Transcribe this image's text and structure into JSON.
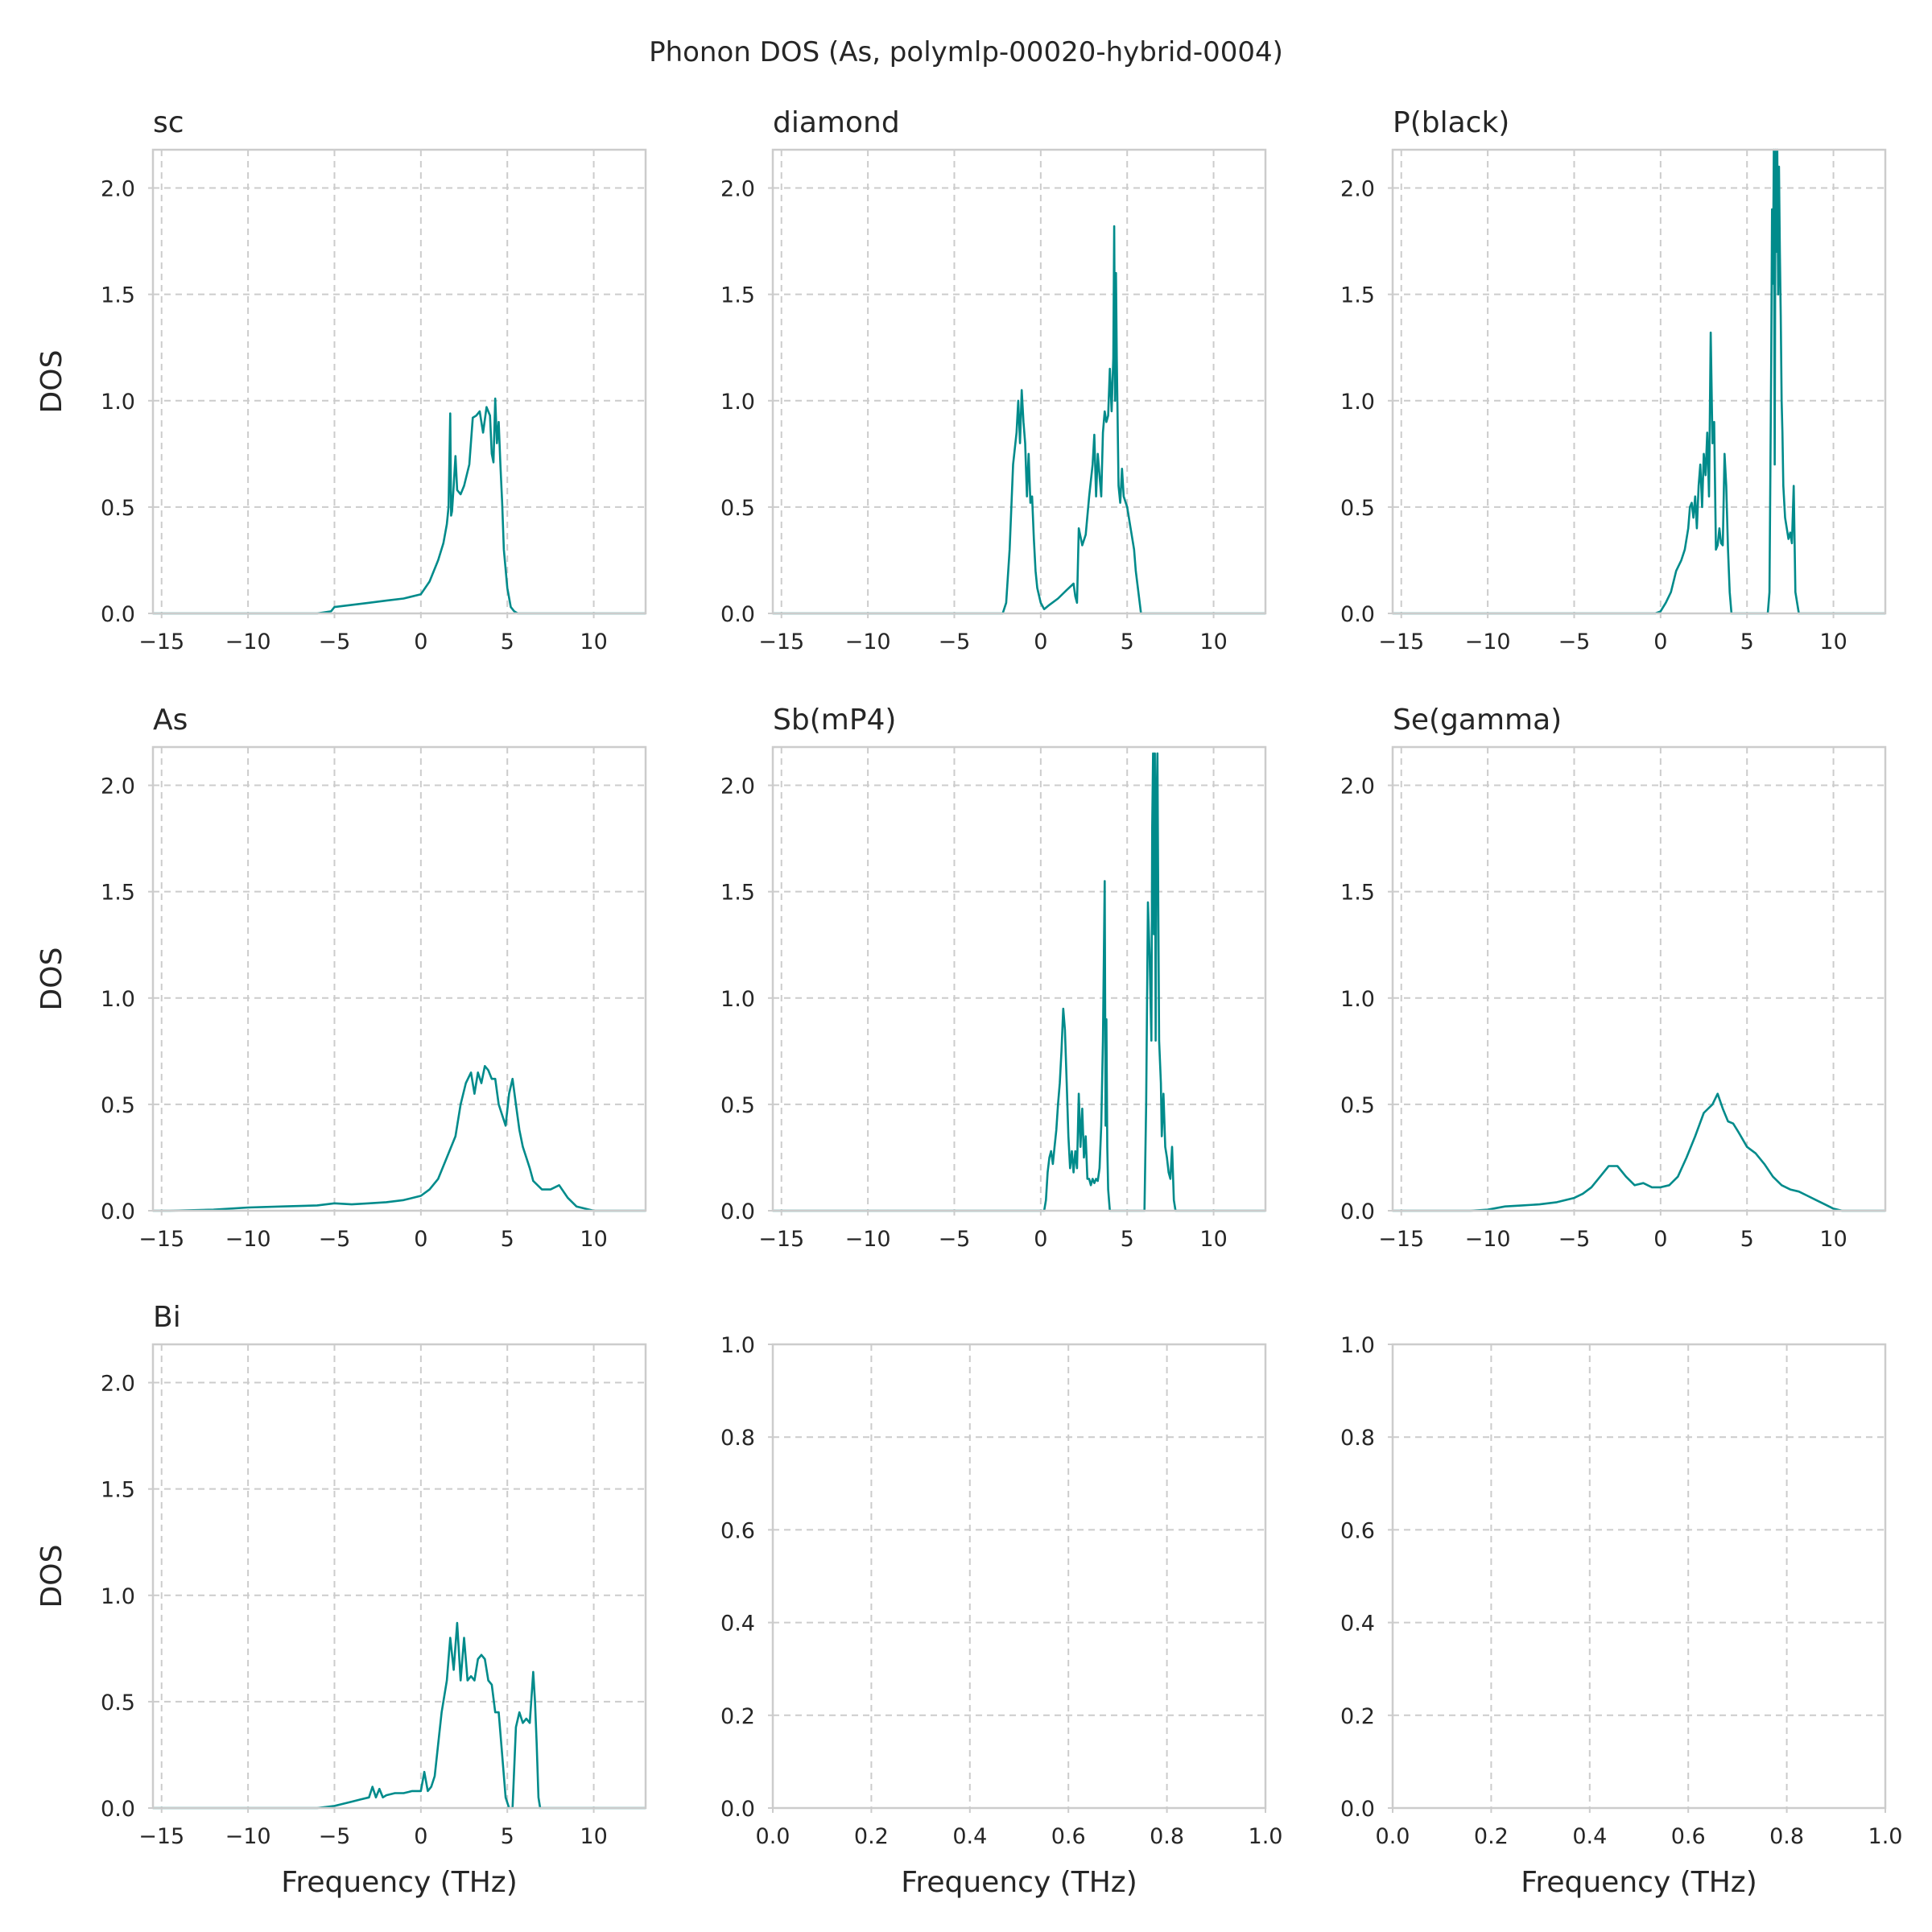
{
  "figure": {
    "title": "Phonon DOS (As, polymlp-00020-hybrid-0004)",
    "line_color": "#008b8b"
  },
  "chart_data": [
    {
      "type": "line",
      "title": "sc",
      "xlabel": "",
      "ylabel": "DOS",
      "xlim": [
        -15.5,
        13
      ],
      "ylim": [
        0,
        2.18
      ],
      "xticks": [
        -15,
        -10,
        -5,
        0,
        5,
        10
      ],
      "xtick_labels": [
        "−15",
        "−10",
        "−5",
        "0",
        "5",
        "10"
      ],
      "yticks": [
        0,
        0.5,
        1,
        1.5,
        2
      ],
      "ytick_labels": [
        "0.0",
        "0.5",
        "1.0",
        "1.5",
        "2.0"
      ],
      "grid": true,
      "x": [
        -15.5,
        -6,
        -5.2,
        -5,
        -4,
        -3,
        -2,
        -1,
        0,
        0.5,
        1,
        1.3,
        1.5,
        1.6,
        1.7,
        1.75,
        1.8,
        1.9,
        2.0,
        2.1,
        2.2,
        2.3,
        2.5,
        2.8,
        3.0,
        3.2,
        3.4,
        3.6,
        3.8,
        4.0,
        4.1,
        4.2,
        4.3,
        4.4,
        4.5,
        4.6,
        4.7,
        4.8,
        5.0,
        5.2,
        5.4,
        5.6,
        6.0,
        6.5,
        13
      ],
      "y": [
        0,
        0,
        0.01,
        0.03,
        0.04,
        0.05,
        0.06,
        0.07,
        0.09,
        0.15,
        0.25,
        0.33,
        0.42,
        0.5,
        0.94,
        0.46,
        0.48,
        0.6,
        0.74,
        0.58,
        0.57,
        0.56,
        0.6,
        0.7,
        0.92,
        0.93,
        0.95,
        0.85,
        0.97,
        0.93,
        0.75,
        0.71,
        1.01,
        0.8,
        0.9,
        0.7,
        0.52,
        0.3,
        0.12,
        0.03,
        0.01,
        0,
        0,
        0,
        0
      ]
    },
    {
      "type": "line",
      "title": "diamond",
      "xlabel": "",
      "ylabel": "",
      "xlim": [
        -15.5,
        13
      ],
      "ylim": [
        0,
        2.18
      ],
      "xticks": [
        -15,
        -10,
        -5,
        0,
        5,
        10
      ],
      "xtick_labels": [
        "−15",
        "−10",
        "−5",
        "0",
        "5",
        "10"
      ],
      "yticks": [
        0,
        0.5,
        1,
        1.5,
        2
      ],
      "ytick_labels": [
        "0.0",
        "0.5",
        "1.0",
        "1.5",
        "2.0"
      ],
      "grid": true,
      "x": [
        -15.5,
        -2.2,
        -2.0,
        -1.8,
        -1.6,
        -1.4,
        -1.3,
        -1.2,
        -1.1,
        -1.0,
        -0.9,
        -0.8,
        -0.7,
        -0.6,
        -0.5,
        -0.4,
        -0.3,
        -0.2,
        0,
        0.2,
        0.5,
        1.0,
        1.5,
        1.9,
        2.0,
        2.1,
        2.2,
        2.4,
        2.6,
        2.8,
        3.0,
        3.1,
        3.2,
        3.3,
        3.5,
        3.6,
        3.7,
        3.8,
        3.9,
        4.0,
        4.1,
        4.2,
        4.25,
        4.3,
        4.35,
        4.4,
        4.5,
        4.6,
        4.7,
        4.8,
        5.0,
        5.2,
        5.4,
        5.5,
        5.8,
        13
      ],
      "y": [
        0,
        0,
        0.05,
        0.3,
        0.7,
        0.85,
        1.0,
        0.8,
        1.05,
        0.9,
        0.8,
        0.55,
        0.75,
        0.52,
        0.55,
        0.35,
        0.2,
        0.12,
        0.05,
        0.02,
        0.04,
        0.07,
        0.11,
        0.14,
        0.08,
        0.05,
        0.4,
        0.32,
        0.37,
        0.55,
        0.7,
        0.84,
        0.55,
        0.75,
        0.55,
        0.85,
        0.95,
        0.9,
        0.93,
        1.15,
        0.95,
        1.2,
        1.82,
        1.0,
        1.6,
        1.2,
        0.6,
        0.52,
        0.68,
        0.55,
        0.5,
        0.4,
        0.3,
        0.2,
        0,
        0
      ]
    },
    {
      "type": "line",
      "title": "P(black)",
      "xlabel": "",
      "ylabel": "",
      "xlim": [
        -15.5,
        13
      ],
      "ylim": [
        0,
        2.18
      ],
      "xticks": [
        -15,
        -10,
        -5,
        0,
        5,
        10
      ],
      "xtick_labels": [
        "−15",
        "−10",
        "−5",
        "0",
        "5",
        "10"
      ],
      "yticks": [
        0,
        0.5,
        1,
        1.5,
        2
      ],
      "ytick_labels": [
        "0.0",
        "0.5",
        "1.0",
        "1.5",
        "2.0"
      ],
      "grid": true,
      "x": [
        -15.5,
        -0.3,
        0,
        0.3,
        0.6,
        0.9,
        1.2,
        1.4,
        1.6,
        1.7,
        1.8,
        1.9,
        2.0,
        2.1,
        2.2,
        2.3,
        2.4,
        2.5,
        2.6,
        2.7,
        2.8,
        2.9,
        3.0,
        3.1,
        3.2,
        3.3,
        3.4,
        3.5,
        3.6,
        3.7,
        3.8,
        3.9,
        4.0,
        4.1,
        4.2,
        4.5,
        5.0,
        5.5,
        6.0,
        6.2,
        6.3,
        6.4,
        6.45,
        6.5,
        6.55,
        6.6,
        6.65,
        6.7,
        6.75,
        6.8,
        6.85,
        6.9,
        6.95,
        7.0,
        7.05,
        7.1,
        7.2,
        7.3,
        7.4,
        7.5,
        7.6,
        7.7,
        7.8,
        8.0,
        8.3,
        13
      ],
      "y": [
        0,
        0,
        0.01,
        0.05,
        0.1,
        0.2,
        0.25,
        0.3,
        0.4,
        0.5,
        0.52,
        0.45,
        0.55,
        0.4,
        0.6,
        0.7,
        0.5,
        0.75,
        0.65,
        0.85,
        0.55,
        1.32,
        0.8,
        0.9,
        0.3,
        0.32,
        0.4,
        0.33,
        0.32,
        0.75,
        0.6,
        0.3,
        0.1,
        0,
        0,
        0,
        0,
        0,
        0,
        0,
        0.1,
        1.2,
        1.9,
        1.55,
        2.18,
        0.7,
        2.18,
        1.7,
        2.18,
        1.5,
        2.1,
        1.7,
        1.4,
        1.0,
        0.85,
        0.6,
        0.45,
        0.4,
        0.35,
        0.38,
        0.33,
        0.6,
        0.1,
        0,
        0,
        0
      ]
    },
    {
      "type": "line",
      "title": "As",
      "xlabel": "",
      "ylabel": "DOS",
      "xlim": [
        -15.5,
        13
      ],
      "ylim": [
        0,
        2.18
      ],
      "xticks": [
        -15,
        -10,
        -5,
        0,
        5,
        10
      ],
      "xtick_labels": [
        "−15",
        "−10",
        "−5",
        "0",
        "5",
        "10"
      ],
      "yticks": [
        0,
        0.5,
        1,
        1.5,
        2
      ],
      "ytick_labels": [
        "0.0",
        "0.5",
        "1.0",
        "1.5",
        "2.0"
      ],
      "grid": true,
      "x": [
        -15.5,
        -14.5,
        -12,
        -10,
        -8,
        -6,
        -5,
        -4,
        -3,
        -2,
        -1,
        0,
        0.5,
        1.0,
        1.5,
        2.0,
        2.3,
        2.6,
        2.9,
        3.1,
        3.3,
        3.5,
        3.7,
        3.9,
        4.1,
        4.3,
        4.5,
        4.7,
        4.9,
        5.1,
        5.3,
        5.5,
        5.7,
        5.9,
        6.1,
        6.3,
        6.5,
        7.0,
        7.5,
        8.0,
        8.5,
        9.0,
        10,
        11.2,
        11.5,
        13
      ],
      "y": [
        0,
        0,
        0.005,
        0.015,
        0.02,
        0.025,
        0.035,
        0.03,
        0.035,
        0.04,
        0.05,
        0.07,
        0.1,
        0.15,
        0.25,
        0.35,
        0.5,
        0.6,
        0.65,
        0.55,
        0.65,
        0.6,
        0.68,
        0.66,
        0.62,
        0.62,
        0.5,
        0.45,
        0.4,
        0.55,
        0.62,
        0.5,
        0.38,
        0.3,
        0.25,
        0.2,
        0.14,
        0.1,
        0.1,
        0.12,
        0.06,
        0.02,
        0,
        0,
        0,
        0
      ]
    },
    {
      "type": "line",
      "title": "Sb(mP4)",
      "xlabel": "",
      "ylabel": "",
      "xlim": [
        -15.5,
        13
      ],
      "ylim": [
        0,
        2.18
      ],
      "xticks": [
        -15,
        -10,
        -5,
        0,
        5,
        10
      ],
      "xtick_labels": [
        "−15",
        "−10",
        "−5",
        "0",
        "5",
        "10"
      ],
      "yticks": [
        0,
        0.5,
        1,
        1.5,
        2
      ],
      "ytick_labels": [
        "0.0",
        "0.5",
        "1.0",
        "1.5",
        "2.0"
      ],
      "grid": true,
      "x": [
        -15.5,
        -0.6,
        0.2,
        0.3,
        0.4,
        0.5,
        0.6,
        0.7,
        0.8,
        0.9,
        1.0,
        1.1,
        1.2,
        1.3,
        1.4,
        1.5,
        1.6,
        1.7,
        1.8,
        1.9,
        2.0,
        2.1,
        2.2,
        2.3,
        2.4,
        2.5,
        2.6,
        2.7,
        2.8,
        2.9,
        3.0,
        3.1,
        3.2,
        3.3,
        3.4,
        3.5,
        3.6,
        3.7,
        3.75,
        3.8,
        3.85,
        3.9,
        4.0,
        4.1,
        5.5,
        6.0,
        6.1,
        6.2,
        6.3,
        6.4,
        6.45,
        6.5,
        6.55,
        6.6,
        6.65,
        6.7,
        6.75,
        6.8,
        6.85,
        6.9,
        6.95,
        7.0,
        7.1,
        7.2,
        7.3,
        7.4,
        7.5,
        7.6,
        7.7,
        7.8,
        8.3,
        13
      ],
      "y": [
        0,
        0,
        0,
        0.05,
        0.18,
        0.25,
        0.28,
        0.22,
        0.3,
        0.38,
        0.5,
        0.6,
        0.75,
        0.95,
        0.85,
        0.6,
        0.35,
        0.2,
        0.28,
        0.18,
        0.28,
        0.2,
        0.55,
        0.3,
        0.48,
        0.25,
        0.35,
        0.15,
        0.15,
        0.12,
        0.15,
        0.13,
        0.15,
        0.14,
        0.2,
        0.4,
        0.8,
        1.55,
        0.4,
        0.9,
        0.3,
        0.1,
        0,
        0,
        0,
        0,
        0.5,
        1.45,
        1.2,
        0.8,
        1.8,
        2.15,
        1.3,
        2.15,
        0.8,
        1.9,
        2.15,
        1.4,
        0.8,
        0.7,
        0.6,
        0.35,
        0.55,
        0.3,
        0.25,
        0.18,
        0.15,
        0.3,
        0.05,
        0,
        0,
        0
      ]
    },
    {
      "type": "line",
      "title": "Se(gamma)",
      "xlabel": "",
      "ylabel": "",
      "xlim": [
        -15.5,
        13
      ],
      "ylim": [
        0,
        2.18
      ],
      "xticks": [
        -15,
        -10,
        -5,
        0,
        5,
        10
      ],
      "xtick_labels": [
        "−15",
        "−10",
        "−5",
        "0",
        "5",
        "10"
      ],
      "yticks": [
        0,
        0.5,
        1,
        1.5,
        2
      ],
      "ytick_labels": [
        "0.0",
        "0.5",
        "1.0",
        "1.5",
        "2.0"
      ],
      "grid": true,
      "x": [
        -15.5,
        -11,
        -10,
        -9,
        -8,
        -7,
        -6,
        -5,
        -4.5,
        -4,
        -3.5,
        -3,
        -2.5,
        -2,
        -1.5,
        -1,
        -0.5,
        0,
        0.5,
        1,
        1.5,
        2,
        2.5,
        3,
        3.3,
        3.6,
        3.9,
        4.2,
        4.5,
        5,
        5.5,
        6,
        6.5,
        7,
        7.5,
        8,
        8.5,
        9,
        9.5,
        10,
        10.5,
        11,
        13
      ],
      "y": [
        0,
        0,
        0.005,
        0.02,
        0.025,
        0.03,
        0.04,
        0.06,
        0.08,
        0.11,
        0.16,
        0.21,
        0.21,
        0.16,
        0.12,
        0.13,
        0.11,
        0.11,
        0.12,
        0.16,
        0.25,
        0.35,
        0.46,
        0.5,
        0.55,
        0.48,
        0.42,
        0.41,
        0.37,
        0.3,
        0.27,
        0.22,
        0.16,
        0.12,
        0.1,
        0.09,
        0.07,
        0.05,
        0.03,
        0.01,
        0,
        0,
        0
      ]
    },
    {
      "type": "line",
      "title": "Bi",
      "xlabel": "Frequency (THz)",
      "ylabel": "DOS",
      "xlim": [
        -15.5,
        13
      ],
      "ylim": [
        0,
        2.18
      ],
      "xticks": [
        -15,
        -10,
        -5,
        0,
        5,
        10
      ],
      "xtick_labels": [
        "−15",
        "−10",
        "−5",
        "0",
        "5",
        "10"
      ],
      "yticks": [
        0,
        0.5,
        1,
        1.5,
        2
      ],
      "ytick_labels": [
        "0.0",
        "0.5",
        "1.0",
        "1.5",
        "2.0"
      ],
      "grid": true,
      "x": [
        -15.5,
        -6,
        -5,
        -4,
        -3.5,
        -3,
        -2.8,
        -2.6,
        -2.4,
        -2.2,
        -2,
        -1.5,
        -1,
        -0.5,
        0,
        0.2,
        0.4,
        0.6,
        0.8,
        1.0,
        1.2,
        1.5,
        1.7,
        1.9,
        2.1,
        2.3,
        2.5,
        2.7,
        2.9,
        3.1,
        3.3,
        3.5,
        3.7,
        3.9,
        4.1,
        4.3,
        4.5,
        4.7,
        4.9,
        5.1,
        5.3,
        5.5,
        5.7,
        5.9,
        6.1,
        6.3,
        6.5,
        6.6,
        6.7,
        6.8,
        6.9,
        7.0,
        8.0,
        13
      ],
      "y": [
        0,
        0,
        0.01,
        0.03,
        0.04,
        0.05,
        0.1,
        0.05,
        0.09,
        0.05,
        0.06,
        0.07,
        0.07,
        0.08,
        0.08,
        0.17,
        0.08,
        0.1,
        0.15,
        0.3,
        0.45,
        0.6,
        0.8,
        0.65,
        0.87,
        0.6,
        0.8,
        0.6,
        0.62,
        0.6,
        0.7,
        0.72,
        0.7,
        0.6,
        0.58,
        0.45,
        0.45,
        0.25,
        0.05,
        0,
        0,
        0.38,
        0.45,
        0.4,
        0.42,
        0.4,
        0.64,
        0.5,
        0.3,
        0.05,
        0,
        0,
        0,
        0
      ]
    },
    {
      "type": "line",
      "title": "",
      "xlabel": "Frequency (THz)",
      "ylabel": "",
      "xlim": [
        0,
        1
      ],
      "ylim": [
        0,
        1
      ],
      "xticks": [
        0,
        0.2,
        0.4,
        0.6,
        0.8,
        1
      ],
      "xtick_labels": [
        "0.0",
        "0.2",
        "0.4",
        "0.6",
        "0.8",
        "1.0"
      ],
      "yticks": [
        0,
        0.2,
        0.4,
        0.6,
        0.8,
        1
      ],
      "ytick_labels": [
        "0.0",
        "0.2",
        "0.4",
        "0.6",
        "0.8",
        "1.0"
      ],
      "grid": true,
      "x": [],
      "y": []
    },
    {
      "type": "line",
      "title": "",
      "xlabel": "Frequency (THz)",
      "ylabel": "",
      "xlim": [
        0,
        1
      ],
      "ylim": [
        0,
        1
      ],
      "xticks": [
        0,
        0.2,
        0.4,
        0.6,
        0.8,
        1
      ],
      "xtick_labels": [
        "0.0",
        "0.2",
        "0.4",
        "0.6",
        "0.8",
        "1.0"
      ],
      "yticks": [
        0,
        0.2,
        0.4,
        0.6,
        0.8,
        1
      ],
      "ytick_labels": [
        "0.0",
        "0.2",
        "0.4",
        "0.6",
        "0.8",
        "1.0"
      ],
      "grid": true,
      "x": [],
      "y": []
    }
  ]
}
